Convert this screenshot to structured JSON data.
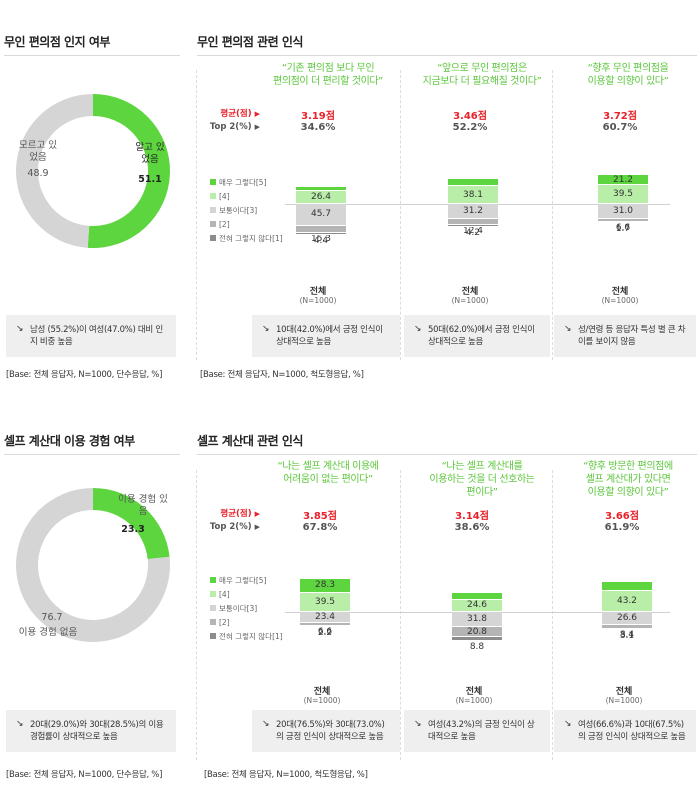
{
  "colors": {
    "green_dark": "#5dd53f",
    "green_light": "#b9eea8",
    "gray_light": "#d5d5d5",
    "gray_mid": "#b4b4b4",
    "gray_dark": "#8c8c8c",
    "red": "#e8212a",
    "quote_green": "#5cc73c"
  },
  "legend": {
    "items": [
      {
        "label": "매우 그렇다[5]",
        "color": "#5dd53f"
      },
      {
        "label": "[4]",
        "color": "#b9eea8"
      },
      {
        "label": "보통이다[3]",
        "color": "#d5d5d5"
      },
      {
        "label": "[2]",
        "color": "#b4b4b4"
      },
      {
        "label": "전혀 그렇지 않다[1]",
        "color": "#8c8c8c"
      }
    ]
  },
  "section1": {
    "donut_title": "무인 편의점 인지 여부",
    "bars_title": "무인 편의점 관련 인식",
    "avg_label": "평균(점)",
    "top_label": "Top 2(%)",
    "donut_base": "[Base: 전체 응답자, N=1000, 단수응답, %]",
    "bars_base": "[Base: 전체 응답자, N=1000, 척도형응답, %]",
    "donut_note": "남성 (55.2%)이 여성(47.0%) 대비 인지 비중 높음",
    "notes": [
      "10대(42.0%)에서 긍정 인식이 상대적으로 높음",
      "50대(62.0%)에서 긍정 인식이 상대적으로 높음",
      "성/연령 등 응답자 특성 별 큰 차이를 보이지 않음"
    ]
  },
  "section2": {
    "donut_title": "셀프 계산대 이용 경험 여부",
    "bars_title": "셀프 계산대 관련 인식",
    "avg_label": "평균(점)",
    "top_label": "Top 2(%)",
    "donut_base": "[Base: 전체 응답자, N=1000, 단수응답, %]",
    "bars_base": "[Base: 전체 응답자, N=1000, 척도형응답, %]",
    "donut_note": "20대(29.0%)와 30대(28.5%)의 이용 경험률이 상대적으로 높음",
    "notes": [
      "20대(76.5%)와 30대(73.0%)의 긍정 인식이 상대적으로 높음",
      "여성(43.2%)의 긍정 인식이 상대적으로 높음",
      "여성(66.6%)과 10대(67.5%)의 긍정 인식이 상대적으로 높음"
    ]
  },
  "chart_data": [
    {
      "type": "pie",
      "title": "무인 편의점 인지 여부",
      "categories": [
        "알고 있었음",
        "모르고 있었음"
      ],
      "values": [
        51.1,
        48.9
      ]
    },
    {
      "type": "bar",
      "stacked": true,
      "title": "무인 편의점 관련 인식",
      "category_label": "전체",
      "n_label": "(N=1000)",
      "bars": [
        {
          "statement": "“기존 편의점 보다 무인\n편의점이 더 편리할 것이다”",
          "avg": "3.19점",
          "top2": "34.6%",
          "values": [
            8.2,
            26.4,
            45.7,
            15.3,
            4.4
          ]
        },
        {
          "statement": "“앞으로 무인 편의점은\n지금보다 더 필요해질 것이다”",
          "avg": "3.46점",
          "top2": "52.2%",
          "values": [
            14.1,
            38.1,
            31.2,
            12.4,
            4.2
          ]
        },
        {
          "statement": "“향후 무인 편의점을\n이용할 의향이 있다”",
          "avg": "3.72점",
          "top2": "60.7%",
          "values": [
            21.2,
            39.5,
            31.0,
            6.6,
            1.7
          ]
        }
      ]
    },
    {
      "type": "pie",
      "title": "셀프 계산대 이용 경험 여부",
      "categories": [
        "이용 경험 있음",
        "이용 경험 없음"
      ],
      "values": [
        23.3,
        76.7
      ]
    },
    {
      "type": "bar",
      "stacked": true,
      "title": "셀프 계산대 관련 인식",
      "category_label": "전체",
      "n_label": "(N=1000)",
      "bars": [
        {
          "statement": "“나는 셀프 계산대 이용에\n어려움이 없는 편이다”",
          "avg": "3.85점",
          "top2": "67.8%",
          "values": [
            28.3,
            39.5,
            23.4,
            6.6,
            2.2
          ]
        },
        {
          "statement": "“나는 셀프 계산대를\n이용하는 것을 더 선호하는\n편이다”",
          "avg": "3.14점",
          "top2": "38.6%",
          "values": [
            14.0,
            24.6,
            31.8,
            20.8,
            8.8
          ]
        },
        {
          "statement": "“향후 방문한 편의점에\n셀프 계산대가 있다면\n이용할 의향이 있다”",
          "avg": "3.66점",
          "top2": "61.9%",
          "values": [
            18.7,
            43.2,
            26.6,
            8.4,
            3.1
          ]
        }
      ]
    }
  ]
}
